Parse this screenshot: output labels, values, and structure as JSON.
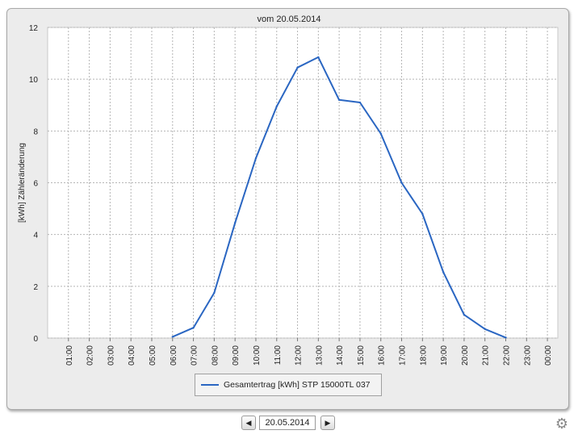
{
  "chart_data": {
    "type": "line",
    "title": "vom 20.05.2014",
    "xlabel": "",
    "ylabel": "[kWh] Zähleränderung",
    "ylim": [
      0,
      12
    ],
    "yticks": [
      0,
      2,
      4,
      6,
      8,
      10,
      12
    ],
    "grid": true,
    "legend_position": "bottom",
    "categories": [
      "01:00",
      "02:00",
      "03:00",
      "04:00",
      "05:00",
      "06:00",
      "07:00",
      "08:00",
      "09:00",
      "10:00",
      "11:00",
      "12:00",
      "13:00",
      "14:00",
      "15:00",
      "16:00",
      "17:00",
      "18:00",
      "19:00",
      "20:00",
      "21:00",
      "22:00",
      "23:00",
      "00:00"
    ],
    "series": [
      {
        "name": "Gesamtertrag [kWh] STP 15000TL 037",
        "color": "#2a66c2",
        "values": [
          null,
          null,
          null,
          null,
          null,
          0.05,
          0.4,
          1.75,
          4.45,
          6.95,
          8.95,
          10.45,
          10.85,
          9.2,
          9.1,
          7.9,
          6.0,
          4.8,
          2.55,
          0.9,
          0.35,
          0.02,
          null,
          null
        ]
      }
    ]
  },
  "navigation": {
    "prev_icon": "left-arrow-icon",
    "next_icon": "right-arrow-icon",
    "prev_glyph": "◀",
    "next_glyph": "▶",
    "date_value": "20.05.2014",
    "settings_icon": "gear-icon",
    "settings_glyph": "⚙"
  }
}
